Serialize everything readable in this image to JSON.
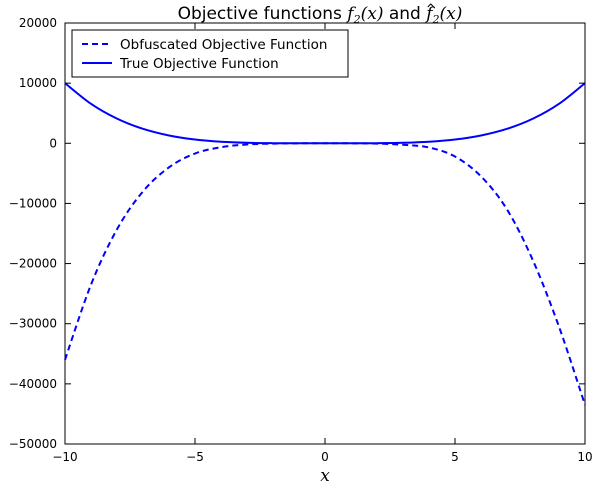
{
  "chart_data": {
    "type": "line",
    "title_parts": [
      "Objective functions ",
      "f",
      "2",
      "(x)",
      " and ",
      "f",
      "2",
      "(x)"
    ],
    "xlabel": "x",
    "ylabel": "",
    "xlim": [
      -10,
      10
    ],
    "ylim": [
      -50000,
      20000
    ],
    "xticks": [
      -10,
      -5,
      0,
      5,
      10
    ],
    "xtick_labels": [
      "−10",
      "−5",
      "0",
      "5",
      "10"
    ],
    "yticks": [
      -50000,
      -40000,
      -30000,
      -20000,
      -10000,
      0,
      10000,
      20000
    ],
    "ytick_labels": [
      "−50000",
      "−40000",
      "−30000",
      "−20000",
      "−10000",
      "0",
      "10000",
      "20000"
    ],
    "grid": false,
    "legend_position": "top-left",
    "series": [
      {
        "name": "Obfuscated Objective Function",
        "style": "dashed",
        "color": "#0000ff",
        "x": [
          -10,
          -9,
          -8,
          -7,
          -6,
          -5,
          -4,
          -3,
          -2,
          -1,
          0,
          1,
          2,
          3,
          4,
          5,
          6,
          7,
          8,
          9,
          10
        ],
        "y": [
          -36000,
          -23500,
          -14300,
          -8000,
          -4000,
          -1700,
          -650,
          -200,
          -50,
          -5,
          0,
          -5,
          -50,
          -250,
          -700,
          -2200,
          -5500,
          -11000,
          -19500,
          -30500,
          -43500
        ]
      },
      {
        "name": "True Objective Function",
        "style": "solid",
        "color": "#0000ff",
        "x": [
          -10,
          -9,
          -8,
          -7,
          -6,
          -5,
          -4,
          -3,
          -2,
          -1,
          0,
          1,
          2,
          3,
          4,
          5,
          6,
          7,
          8,
          9,
          10
        ],
        "y": [
          10000,
          6561,
          4096,
          2401,
          1296,
          625,
          256,
          81,
          16,
          1,
          0,
          1,
          16,
          81,
          256,
          625,
          1296,
          2401,
          4096,
          6561,
          10000
        ]
      }
    ]
  }
}
